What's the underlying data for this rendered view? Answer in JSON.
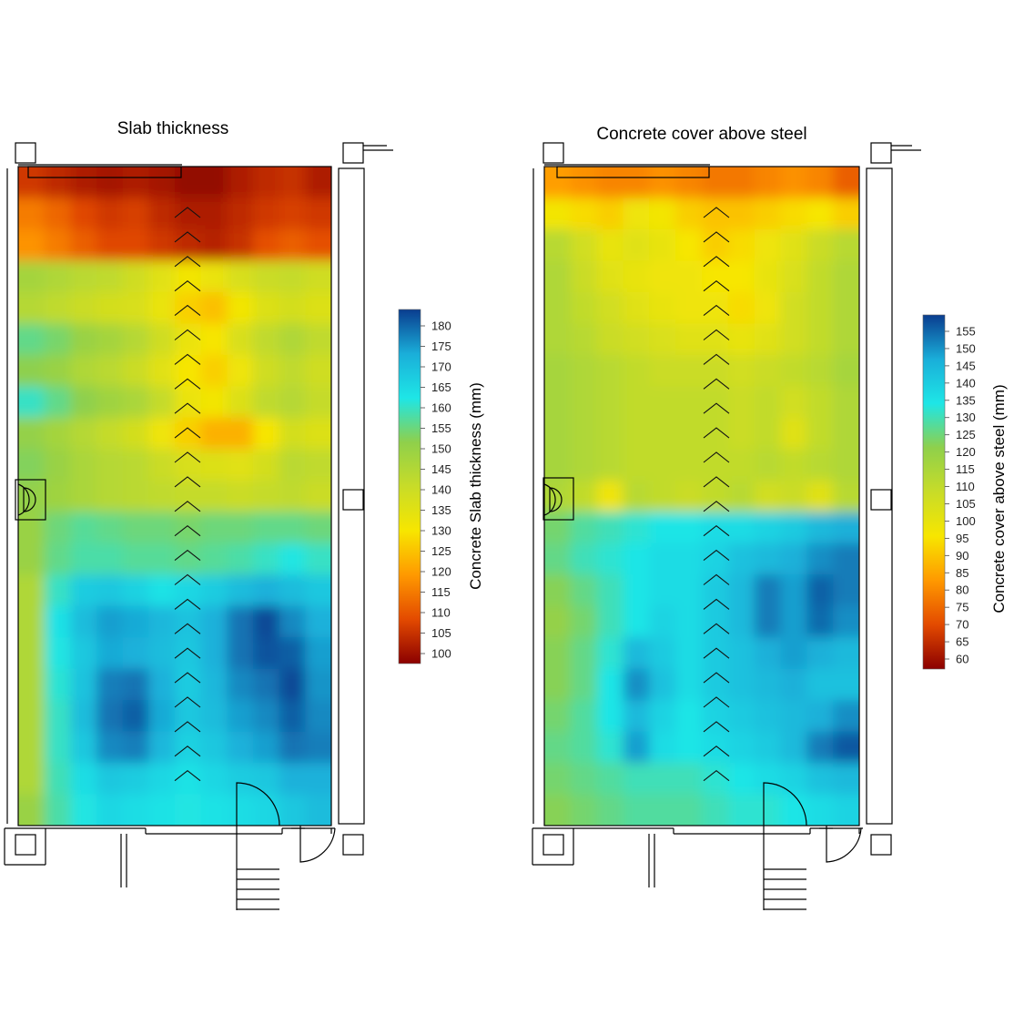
{
  "chart_data": [
    {
      "type": "heatmap",
      "title": "Slab thickness",
      "colorbar_label": "Concrete Slab thickness (mm)",
      "colorbar_range": [
        100,
        183
      ],
      "colorbar_ticks": [
        100,
        105,
        110,
        115,
        120,
        125,
        130,
        135,
        140,
        145,
        150,
        155,
        160,
        165,
        170,
        175,
        180
      ],
      "colormap": [
        "#8b0000",
        "#e34a00",
        "#ff9900",
        "#f7e600",
        "#c8dc28",
        "#8fd04b",
        "#1ee6e6",
        "#1aaed9",
        "#0a3d8f"
      ],
      "rows": [
        [
          108,
          106,
          104,
          103,
          104,
          103,
          101,
          101,
          104,
          106,
          107,
          104
        ],
        [
          117,
          114,
          110,
          108,
          109,
          106,
          104,
          104,
          106,
          108,
          109,
          108
        ],
        [
          120,
          117,
          113,
          110,
          110,
          108,
          106,
          105,
          107,
          111,
          113,
          111
        ],
        [
          148,
          146,
          144,
          143,
          140,
          136,
          132,
          134,
          138,
          141,
          142,
          140
        ],
        [
          145,
          143,
          141,
          139,
          138,
          134,
          128,
          126,
          132,
          137,
          139,
          137
        ],
        [
          156,
          154,
          150,
          148,
          145,
          140,
          134,
          131,
          138,
          143,
          146,
          143
        ],
        [
          152,
          150,
          146,
          144,
          141,
          136,
          131,
          128,
          133,
          140,
          143,
          140
        ],
        [
          160,
          156,
          152,
          149,
          147,
          142,
          134,
          132,
          137,
          143,
          145,
          142
        ],
        [
          151,
          148,
          145,
          142,
          139,
          133,
          128,
          124,
          124,
          131,
          139,
          137
        ],
        [
          153,
          150,
          147,
          145,
          144,
          141,
          138,
          137,
          136,
          139,
          144,
          143
        ],
        [
          151,
          149,
          147,
          145,
          144,
          143,
          142,
          142,
          141,
          142,
          143,
          141
        ],
        [
          150,
          155,
          157,
          156,
          155,
          155,
          154,
          155,
          155,
          156,
          156,
          155
        ],
        [
          150,
          156,
          158,
          158,
          157,
          157,
          156,
          157,
          158,
          160,
          162,
          160
        ],
        [
          146,
          160,
          167,
          168,
          166,
          163,
          165,
          167,
          170,
          172,
          170,
          168
        ],
        [
          146,
          163,
          170,
          174,
          173,
          171,
          169,
          172,
          178,
          182,
          176,
          172
        ],
        [
          146,
          162,
          168,
          173,
          172,
          170,
          168,
          172,
          178,
          181,
          180,
          174
        ],
        [
          146,
          161,
          169,
          177,
          178,
          172,
          167,
          171,
          176,
          178,
          182,
          175
        ],
        [
          146,
          160,
          170,
          178,
          180,
          173,
          168,
          170,
          174,
          176,
          180,
          176
        ],
        [
          146,
          160,
          168,
          176,
          177,
          171,
          166,
          168,
          172,
          174,
          178,
          177
        ],
        [
          146,
          159,
          164,
          168,
          167,
          165,
          163,
          165,
          167,
          168,
          172,
          172
        ],
        [
          150,
          158,
          162,
          165,
          164,
          163,
          162,
          163,
          164,
          165,
          168,
          170
        ]
      ]
    },
    {
      "type": "heatmap",
      "title": "Concrete cover above steel",
      "colorbar_label": "Concrete cover above steel (mm)",
      "colorbar_range": [
        56,
        157
      ],
      "colorbar_ticks": [
        60,
        65,
        70,
        75,
        80,
        85,
        90,
        95,
        100,
        105,
        110,
        115,
        120,
        125,
        130,
        135,
        140,
        145,
        150,
        155
      ],
      "colormap": [
        "#8b0000",
        "#e34a00",
        "#ff9900",
        "#f7e600",
        "#c8dc28",
        "#8fd04b",
        "#1ee6e6",
        "#1aaed9",
        "#0a3d8f"
      ],
      "rows": [
        [
          82,
          80,
          78,
          78,
          80,
          78,
          76,
          76,
          78,
          80,
          78,
          72
        ],
        [
          95,
          92,
          90,
          96,
          95,
          90,
          88,
          88,
          90,
          92,
          94,
          90
        ],
        [
          110,
          104,
          98,
          100,
          98,
          94,
          90,
          92,
          96,
          100,
          106,
          110
        ],
        [
          112,
          106,
          100,
          98,
          96,
          96,
          94,
          94,
          98,
          102,
          108,
          112
        ],
        [
          112,
          108,
          104,
          100,
          98,
          96,
          96,
          92,
          96,
          104,
          108,
          112
        ],
        [
          112,
          110,
          106,
          104,
          102,
          100,
          100,
          98,
          100,
          104,
          108,
          112
        ],
        [
          114,
          112,
          110,
          108,
          106,
          106,
          106,
          104,
          106,
          108,
          110,
          114
        ],
        [
          114,
          112,
          110,
          108,
          108,
          108,
          108,
          106,
          108,
          104,
          108,
          112
        ],
        [
          114,
          112,
          110,
          108,
          108,
          108,
          108,
          106,
          108,
          100,
          108,
          112
        ],
        [
          114,
          112,
          110,
          108,
          108,
          108,
          108,
          108,
          110,
          108,
          110,
          112
        ],
        [
          112,
          108,
          96,
          110,
          108,
          106,
          108,
          110,
          104,
          106,
          100,
          110
        ],
        [
          122,
          126,
          128,
          130,
          132,
          132,
          134,
          134,
          136,
          138,
          142,
          144
        ],
        [
          124,
          128,
          130,
          132,
          134,
          134,
          136,
          140,
          142,
          144,
          148,
          150
        ],
        [
          120,
          124,
          128,
          132,
          134,
          134,
          138,
          142,
          150,
          146,
          153,
          150
        ],
        [
          118,
          122,
          128,
          132,
          136,
          134,
          138,
          142,
          150,
          146,
          152,
          148
        ],
        [
          120,
          124,
          130,
          142,
          138,
          134,
          138,
          140,
          144,
          146,
          144,
          142
        ],
        [
          120,
          124,
          132,
          148,
          140,
          134,
          138,
          140,
          142,
          144,
          140,
          140
        ],
        [
          122,
          126,
          132,
          142,
          136,
          132,
          136,
          138,
          140,
          142,
          144,
          148
        ],
        [
          124,
          126,
          130,
          146,
          134,
          132,
          134,
          136,
          138,
          142,
          150,
          154
        ],
        [
          122,
          124,
          126,
          128,
          128,
          128,
          130,
          132,
          134,
          136,
          140,
          142
        ],
        [
          120,
          122,
          124,
          126,
          126,
          126,
          128,
          130,
          130,
          132,
          134,
          136
        ]
      ]
    }
  ]
}
